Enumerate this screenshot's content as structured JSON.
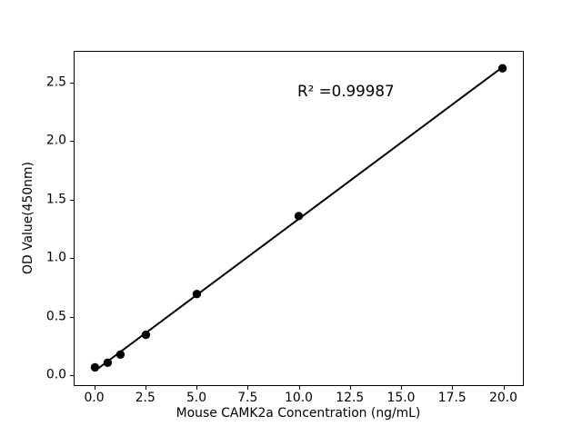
{
  "chart_data": {
    "type": "scatter",
    "title": "",
    "xlabel": "Mouse CAMK2a Concentration (ng/mL)",
    "ylabel": "OD Value(450nm)",
    "annotation": "R² =0.99987",
    "x": [
      0,
      0.625,
      1.25,
      2.5,
      5,
      10,
      20
    ],
    "y": [
      0.06,
      0.1,
      0.17,
      0.34,
      0.69,
      1.36,
      2.63
    ],
    "fit_line": {
      "x": [
        0,
        20
      ],
      "y": [
        0.03,
        2.64
      ],
      "r_squared": 0.99987
    },
    "xlim": [
      -1,
      21
    ],
    "ylim": [
      -0.093,
      2.772
    ],
    "x_tick_values": [
      0,
      2.5,
      5,
      7.5,
      10,
      12.5,
      15,
      17.5,
      20
    ],
    "x_tick_labels": [
      "0.0",
      "2.5",
      "5.0",
      "7.5",
      "10.0",
      "12.5",
      "15.0",
      "17.5",
      "20.0"
    ],
    "y_tick_values": [
      0,
      0.5,
      1,
      1.5,
      2,
      2.5
    ],
    "y_tick_labels": [
      "0.0",
      "0.5",
      "1.0",
      "1.5",
      "2.0",
      "2.5"
    ],
    "grid": false,
    "legend": null,
    "colors": {
      "marker": "#000000",
      "line": "#000000",
      "axis": "#000000",
      "text": "#000000",
      "background": "#ffffff"
    }
  }
}
